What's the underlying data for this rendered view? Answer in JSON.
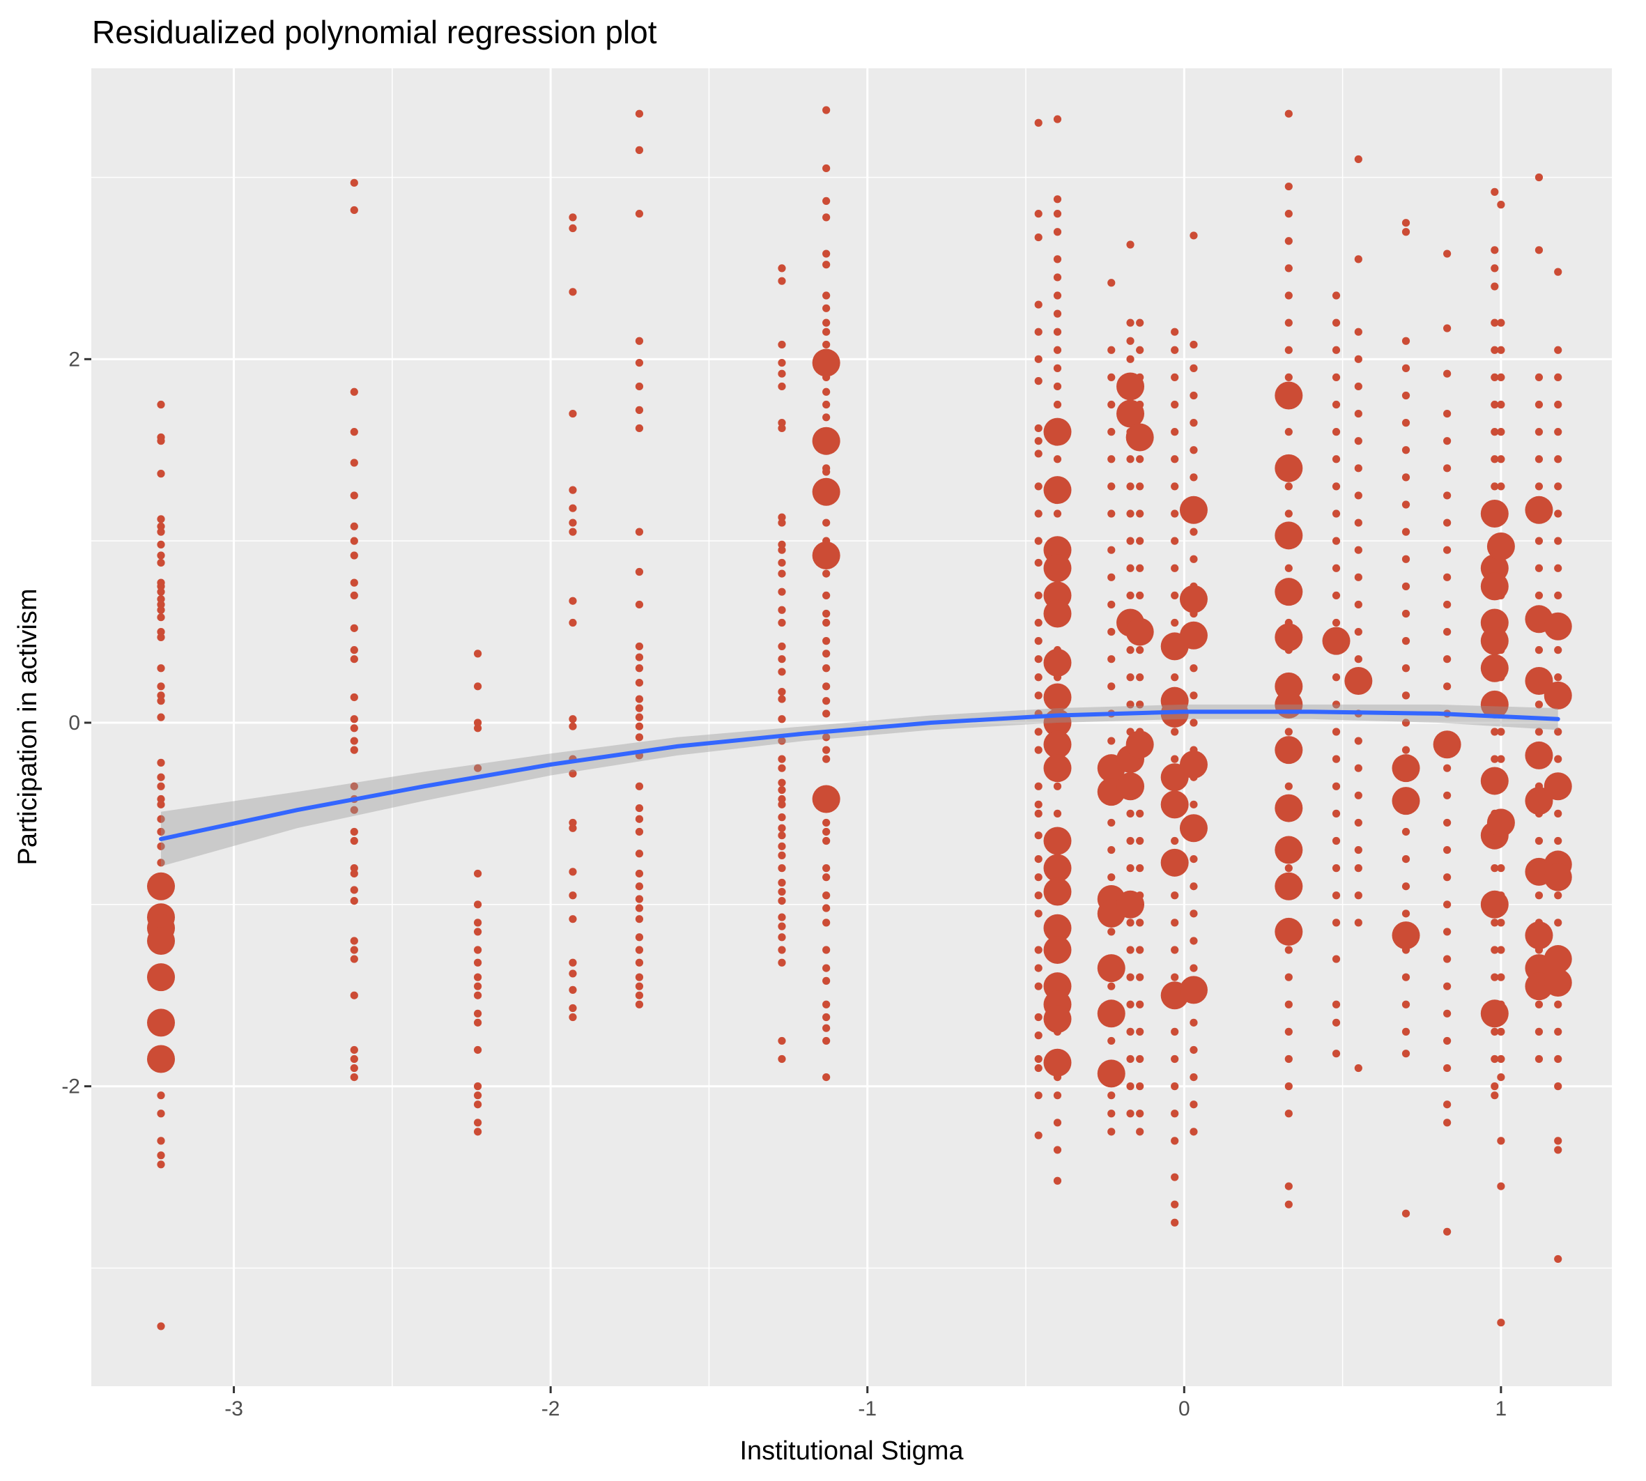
{
  "chart_data": {
    "type": "scatter",
    "title": "Residualized polynomial regression plot",
    "xlabel": "Institutional Stigma",
    "ylabel": "Participation in activism",
    "xlim": [
      -3.45,
      1.35
    ],
    "ylim": [
      -3.65,
      3.6
    ],
    "x_ticks": [
      -3,
      -2,
      -1,
      0,
      1
    ],
    "y_ticks": [
      -2,
      0,
      2
    ],
    "grid": true,
    "legend": "none",
    "colors": {
      "points": "#cc4c35",
      "fit_line": "#3366ff",
      "confidence_band": "#999999",
      "panel_background": "#ebebeb",
      "grid": "#ffffff",
      "tick_text": "#4d4d4d"
    },
    "fit": {
      "method": "quadratic",
      "x": [
        -3.23,
        -2.8,
        -2.4,
        -2.0,
        -1.6,
        -1.2,
        -0.8,
        -0.4,
        0.0,
        0.4,
        0.8,
        1.18
      ],
      "y": [
        -0.64,
        -0.48,
        -0.35,
        -0.23,
        -0.13,
        -0.06,
        0.0,
        0.04,
        0.06,
        0.06,
        0.05,
        0.02
      ],
      "ci_lower": [
        -0.79,
        -0.58,
        -0.43,
        -0.29,
        -0.18,
        -0.1,
        -0.04,
        0.0,
        0.02,
        0.02,
        0.0,
        -0.04
      ],
      "ci_upper": [
        -0.49,
        -0.38,
        -0.27,
        -0.17,
        -0.08,
        -0.02,
        0.04,
        0.08,
        0.1,
        0.1,
        0.1,
        0.08
      ]
    },
    "small_points": [
      {
        "x": -3.23,
        "y": [
          1.75,
          1.57,
          1.55,
          1.37,
          1.12,
          1.08,
          1.05,
          0.98,
          0.92,
          0.88,
          0.77,
          0.75,
          0.72,
          0.68,
          0.65,
          0.62,
          0.58,
          0.5,
          0.47,
          0.3,
          0.2,
          0.15,
          0.12,
          0.03,
          -0.22,
          -0.3,
          -0.35,
          -0.42,
          -0.45,
          -0.53,
          -0.6,
          -0.68,
          -0.77,
          -2.05,
          -2.15,
          -2.3,
          -2.38,
          -2.43,
          -3.32
        ]
      },
      {
        "x": -2.62,
        "y": [
          2.97,
          2.82,
          1.82,
          1.6,
          1.43,
          1.25,
          1.08,
          1.0,
          0.92,
          0.77,
          0.7,
          0.52,
          0.4,
          0.35,
          0.14,
          0.02,
          -0.03,
          -0.1,
          -0.15,
          -0.35,
          -0.42,
          -0.48,
          -0.6,
          -0.65,
          -0.8,
          -0.83,
          -0.92,
          -0.98,
          -1.2,
          -1.25,
          -1.3,
          -1.5,
          -1.8,
          -1.85,
          -1.9,
          -1.95
        ]
      },
      {
        "x": -2.23,
        "y": [
          0.38,
          0.2,
          0.0,
          -0.03,
          -0.25,
          -0.83,
          -1.0,
          -1.1,
          -1.15,
          -1.25,
          -1.32,
          -1.4,
          -1.45,
          -1.5,
          -1.6,
          -1.65,
          -1.8,
          -2.0,
          -2.05,
          -2.1,
          -2.2,
          -2.25
        ]
      },
      {
        "x": -1.93,
        "y": [
          2.78,
          2.72,
          2.37,
          1.7,
          1.28,
          1.18,
          1.1,
          1.05,
          0.67,
          0.55,
          0.02,
          -0.02,
          -0.2,
          -0.28,
          -0.55,
          -0.58,
          -0.82,
          -0.95,
          -1.08,
          -1.32,
          -1.38,
          -1.47,
          -1.57,
          -1.62
        ]
      },
      {
        "x": -1.72,
        "y": [
          3.35,
          3.15,
          2.8,
          2.1,
          1.98,
          1.85,
          1.72,
          1.62,
          1.05,
          0.83,
          0.65,
          0.42,
          0.36,
          0.3,
          0.22,
          0.13,
          0.08,
          0.03,
          -0.02,
          -0.08,
          -0.18,
          -0.35,
          -0.47,
          -0.53,
          -0.6,
          -0.72,
          -0.83,
          -0.9,
          -0.97,
          -1.02,
          -1.08,
          -1.18,
          -1.25,
          -1.32,
          -1.4,
          -1.45,
          -1.5,
          -1.55
        ]
      },
      {
        "x": -1.27,
        "y": [
          2.5,
          2.43,
          2.08,
          1.98,
          1.92,
          1.85,
          1.65,
          1.62,
          1.13,
          1.1,
          0.98,
          0.95,
          0.88,
          0.82,
          0.72,
          0.62,
          0.55,
          0.42,
          0.35,
          0.28,
          0.17,
          0.13,
          0.02,
          -0.1,
          -0.2,
          -0.25,
          -0.33,
          -0.37,
          -0.42,
          -0.45,
          -0.52,
          -0.58,
          -0.62,
          -0.68,
          -0.73,
          -0.8,
          -0.88,
          -0.93,
          -0.98,
          -1.07,
          -1.12,
          -1.18,
          -1.25,
          -1.32,
          -1.75,
          -1.85
        ]
      },
      {
        "x": -1.13,
        "y": [
          3.37,
          3.05,
          2.87,
          2.78,
          2.58,
          2.52,
          2.35,
          2.28,
          2.2,
          2.15,
          2.08,
          1.9,
          1.82,
          1.75,
          1.68,
          1.4,
          1.38,
          1.1,
          1.0,
          0.82,
          0.7,
          0.6,
          0.55,
          0.45,
          0.38,
          0.3,
          0.2,
          0.12,
          0.05,
          -0.08,
          -0.15,
          -0.2,
          -0.55,
          -0.6,
          -0.65,
          -0.8,
          -0.85,
          -0.95,
          -1.02,
          -1.1,
          -1.25,
          -1.35,
          -1.42,
          -1.55,
          -1.62,
          -1.68,
          -1.75,
          -1.95
        ]
      },
      {
        "x": -0.46,
        "y": [
          3.3,
          2.8,
          2.67,
          2.3,
          2.15,
          2.0,
          1.88,
          1.62,
          1.55,
          1.48,
          1.3,
          1.15,
          1.0,
          0.88,
          0.7,
          0.55,
          0.45,
          0.35,
          0.25,
          0.15,
          0.05,
          -0.05,
          -0.15,
          -0.35,
          -0.45,
          -0.5,
          -0.62,
          -0.75,
          -0.85,
          -0.95,
          -1.05,
          -1.25,
          -1.35,
          -1.45,
          -1.62,
          -1.72,
          -1.85,
          -1.9,
          -2.05,
          -2.27
        ]
      },
      {
        "x": -0.4,
        "y": [
          3.32,
          2.88,
          2.8,
          2.7,
          2.55,
          2.45,
          2.35,
          2.25,
          2.15,
          2.05,
          1.95,
          1.85,
          1.75,
          1.6,
          1.45,
          1.3,
          1.15,
          1.0,
          0.85,
          0.7,
          0.55,
          0.4,
          0.25,
          0.1,
          -0.05,
          -0.2,
          -0.35,
          -0.5,
          -0.65,
          -0.8,
          -0.95,
          -1.1,
          -1.25,
          -1.4,
          -1.55,
          -1.7,
          -1.85,
          -1.95,
          -2.05,
          -2.2,
          -2.35,
          -2.52
        ]
      },
      {
        "x": -0.23,
        "y": [
          2.42,
          2.05,
          1.9,
          1.75,
          1.6,
          1.45,
          1.3,
          1.15,
          0.95,
          0.8,
          0.65,
          0.5,
          0.35,
          0.2,
          0.05,
          -0.1,
          -0.25,
          -0.4,
          -0.55,
          -0.7,
          -0.85,
          -1.0,
          -1.15,
          -1.3,
          -1.45,
          -1.6,
          -1.75,
          -1.9,
          -2.05,
          -2.15,
          -2.25
        ]
      },
      {
        "x": -0.17,
        "y": [
          2.63,
          2.2,
          2.1,
          2.0,
          1.88,
          1.75,
          1.6,
          1.45,
          1.3,
          1.15,
          1.0,
          0.85,
          0.7,
          0.55,
          0.4,
          0.25,
          0.1,
          -0.05,
          -0.2,
          -0.35,
          -0.5,
          -0.65,
          -0.8,
          -0.95,
          -1.1,
          -1.25,
          -1.4,
          -1.55,
          -1.7,
          -1.85,
          -2.0,
          -2.15
        ]
      },
      {
        "x": -0.14,
        "y": [
          2.2,
          2.05,
          1.9,
          1.75,
          1.6,
          1.45,
          1.3,
          1.15,
          1.0,
          0.85,
          0.7,
          0.55,
          0.4,
          0.25,
          0.1,
          -0.05,
          -0.2,
          -0.35,
          -0.5,
          -0.65,
          -0.8,
          -0.95,
          -1.1,
          -1.25,
          -1.4,
          -1.55,
          -1.7,
          -1.85,
          -2.0,
          -2.15,
          -2.25
        ]
      },
      {
        "x": -0.03,
        "y": [
          2.15,
          2.05,
          1.9,
          1.75,
          1.6,
          1.45,
          1.3,
          1.15,
          1.0,
          0.85,
          0.7,
          0.55,
          0.4,
          0.25,
          0.1,
          -0.05,
          -0.2,
          -0.35,
          -0.5,
          -0.65,
          -0.8,
          -0.95,
          -1.1,
          -1.25,
          -1.4,
          -1.55,
          -1.7,
          -1.85,
          -2.0,
          -2.15,
          -2.3,
          -2.5,
          -2.65,
          -2.75
        ]
      },
      {
        "x": 0.03,
        "y": [
          2.68,
          2.08,
          1.95,
          1.8,
          1.65,
          1.5,
          1.35,
          1.2,
          1.05,
          0.9,
          0.75,
          0.6,
          0.45,
          0.3,
          0.15,
          0.0,
          -0.15,
          -0.3,
          -0.45,
          -0.6,
          -0.75,
          -0.9,
          -1.05,
          -1.2,
          -1.35,
          -1.5,
          -1.65,
          -1.8,
          -1.95,
          -2.1,
          -2.25
        ]
      },
      {
        "x": 0.33,
        "y": [
          3.35,
          2.95,
          2.8,
          2.65,
          2.5,
          2.35,
          2.2,
          2.05,
          1.9,
          1.75,
          1.6,
          1.45,
          1.3,
          1.15,
          1.0,
          0.85,
          0.7,
          0.55,
          0.4,
          0.25,
          0.1,
          -0.05,
          -0.2,
          -0.35,
          -0.5,
          -0.65,
          -0.8,
          -0.95,
          -1.1,
          -1.25,
          -1.4,
          -1.55,
          -1.7,
          -1.85,
          -2.0,
          -2.15,
          -2.55,
          -2.65
        ]
      },
      {
        "x": 0.48,
        "y": [
          2.35,
          2.2,
          2.05,
          1.9,
          1.75,
          1.6,
          1.45,
          1.3,
          1.15,
          1.0,
          0.85,
          0.7,
          0.55,
          0.4,
          0.25,
          0.1,
          -0.05,
          -0.2,
          -0.35,
          -0.5,
          -0.65,
          -0.8,
          -0.95,
          -1.1,
          -1.3,
          -1.55,
          -1.65,
          -1.82
        ]
      },
      {
        "x": 0.55,
        "y": [
          3.1,
          2.55,
          2.15,
          2.0,
          1.85,
          1.7,
          1.55,
          1.4,
          1.25,
          1.1,
          0.95,
          0.8,
          0.65,
          0.5,
          0.35,
          0.2,
          0.05,
          -0.1,
          -0.25,
          -0.4,
          -0.55,
          -0.7,
          -0.8,
          -0.95,
          -1.1,
          -1.9
        ]
      },
      {
        "x": 0.7,
        "y": [
          2.75,
          2.7,
          2.1,
          1.95,
          1.8,
          1.65,
          1.5,
          1.35,
          1.2,
          1.05,
          0.9,
          0.75,
          0.6,
          0.45,
          0.3,
          0.15,
          0.0,
          -0.15,
          -0.3,
          -0.45,
          -0.6,
          -0.75,
          -0.9,
          -1.05,
          -1.25,
          -1.4,
          -1.55,
          -1.7,
          -1.82,
          -2.7
        ]
      },
      {
        "x": 0.83,
        "y": [
          2.58,
          2.17,
          1.92,
          1.7,
          1.55,
          1.4,
          1.25,
          1.1,
          0.95,
          0.8,
          0.65,
          0.5,
          0.35,
          0.2,
          0.05,
          -0.1,
          -0.25,
          -0.4,
          -0.55,
          -0.7,
          -0.85,
          -1.0,
          -1.15,
          -1.3,
          -1.45,
          -1.6,
          -1.75,
          -1.9,
          -2.1,
          -2.2,
          -2.8
        ]
      },
      {
        "x": 0.98,
        "y": [
          2.92,
          2.6,
          2.5,
          2.4,
          2.2,
          2.05,
          1.9,
          1.75,
          1.6,
          1.45,
          1.3,
          1.15,
          1.0,
          0.85,
          0.7,
          0.55,
          0.4,
          0.25,
          0.1,
          -0.05,
          -0.2,
          -0.35,
          -0.5,
          -0.65,
          -0.8,
          -0.95,
          -1.1,
          -1.25,
          -1.4,
          -1.55,
          -1.7,
          -1.85,
          -2.0,
          -2.05
        ]
      },
      {
        "x": 1.0,
        "y": [
          2.85,
          2.2,
          2.05,
          1.9,
          1.75,
          1.6,
          1.45,
          1.3,
          1.15,
          1.0,
          0.85,
          0.7,
          0.55,
          0.4,
          0.25,
          0.1,
          -0.05,
          -0.2,
          -0.35,
          -0.5,
          -0.65,
          -0.8,
          -0.95,
          -1.1,
          -1.25,
          -1.4,
          -1.55,
          -1.7,
          -1.85,
          -1.95,
          -2.3,
          -2.55,
          -3.3
        ]
      },
      {
        "x": 1.12,
        "y": [
          3.0,
          2.6,
          1.9,
          1.75,
          1.6,
          1.45,
          1.3,
          1.15,
          1.0,
          0.85,
          0.7,
          0.55,
          0.4,
          0.25,
          0.1,
          -0.05,
          -0.2,
          -0.35,
          -0.5,
          -0.65,
          -0.8,
          -0.95,
          -1.1,
          -1.25,
          -1.4,
          -1.55,
          -1.7,
          -1.85
        ]
      },
      {
        "x": 1.18,
        "y": [
          2.48,
          2.05,
          1.9,
          1.75,
          1.6,
          1.45,
          1.3,
          1.15,
          1.0,
          0.85,
          0.7,
          0.55,
          0.4,
          0.25,
          0.1,
          -0.05,
          -0.2,
          -0.35,
          -0.5,
          -0.65,
          -0.8,
          -0.95,
          -1.1,
          -1.25,
          -1.4,
          -1.55,
          -1.7,
          -1.85,
          -2.0,
          -2.3,
          -2.35,
          -2.95
        ]
      }
    ],
    "large_points": [
      {
        "x": -3.23,
        "y": [
          -0.9,
          -1.07,
          -1.13,
          -1.2,
          -1.4,
          -1.65,
          -1.85
        ]
      },
      {
        "x": -1.13,
        "y": [
          1.98,
          1.55,
          1.27,
          0.92,
          -0.42
        ]
      },
      {
        "x": -0.4,
        "y": [
          1.6,
          1.28,
          0.95,
          0.85,
          0.7,
          0.6,
          0.33,
          0.14,
          0.0,
          -0.12,
          -0.25,
          -0.65,
          -0.8,
          -0.93,
          -1.13,
          -1.25,
          -1.45,
          -1.55,
          -1.63,
          -1.87
        ]
      },
      {
        "x": -0.23,
        "y": [
          -0.25,
          -0.38,
          -0.97,
          -1.05,
          -1.35,
          -1.6,
          -1.93
        ]
      },
      {
        "x": -0.17,
        "y": [
          1.85,
          1.7,
          0.55,
          -0.2,
          -0.35,
          -1.0
        ]
      },
      {
        "x": -0.14,
        "y": [
          1.57,
          0.5,
          -0.12
        ]
      },
      {
        "x": -0.03,
        "y": [
          0.42,
          0.12,
          0.05,
          -0.3,
          -0.45,
          -0.77,
          -1.5
        ]
      },
      {
        "x": 0.03,
        "y": [
          1.17,
          0.68,
          0.48,
          -0.23,
          -0.58,
          -1.47
        ]
      },
      {
        "x": 0.33,
        "y": [
          1.8,
          1.4,
          1.03,
          0.72,
          0.47,
          0.2,
          0.1,
          -0.15,
          -0.47,
          -0.7,
          -0.9,
          -1.15
        ]
      },
      {
        "x": 0.48,
        "y": [
          0.45
        ]
      },
      {
        "x": 0.55,
        "y": [
          0.23
        ]
      },
      {
        "x": 0.7,
        "y": [
          -0.25,
          -0.43,
          -1.17
        ]
      },
      {
        "x": 0.83,
        "y": [
          -0.12
        ]
      },
      {
        "x": 0.98,
        "y": [
          1.15,
          0.85,
          0.75,
          0.55,
          0.45,
          0.3,
          0.1,
          -0.32,
          -0.62,
          -1.0,
          -1.6
        ]
      },
      {
        "x": 1.0,
        "y": [
          0.97,
          -0.55
        ]
      },
      {
        "x": 1.12,
        "y": [
          1.17,
          0.57,
          0.23,
          -0.18,
          -0.43,
          -0.82,
          -1.17,
          -1.35,
          -1.45
        ]
      },
      {
        "x": 1.18,
        "y": [
          0.53,
          0.15,
          -0.35,
          -0.78,
          -0.85,
          -1.3,
          -1.43
        ]
      }
    ]
  }
}
